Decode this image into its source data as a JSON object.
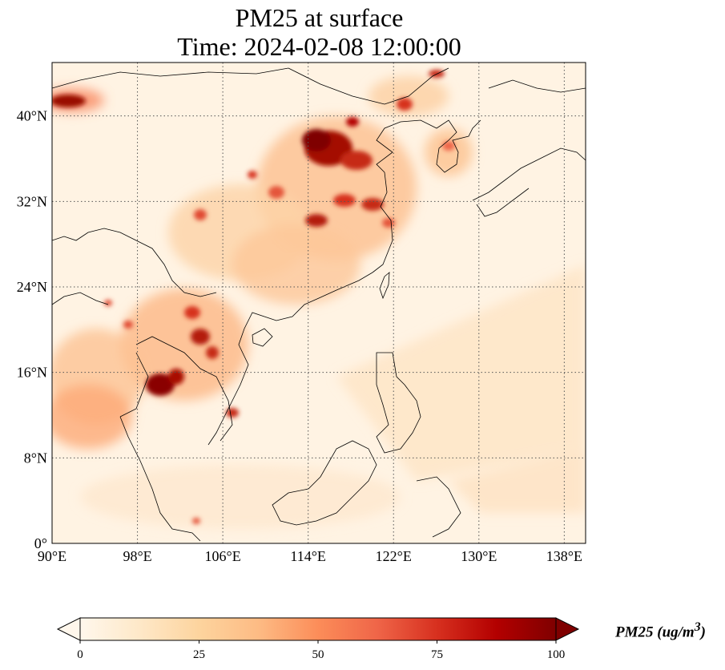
{
  "title": {
    "line1": "PM25 at surface",
    "line2": "Time: 2024-02-08 12:00:00"
  },
  "map": {
    "lon_range": [
      90,
      140
    ],
    "lat_range": [
      0,
      45
    ],
    "gridline_style": "dotted",
    "x_ticks": [
      {
        "value": 90,
        "label": "90°E"
      },
      {
        "value": 98,
        "label": "98°E"
      },
      {
        "value": 106,
        "label": "106°E"
      },
      {
        "value": 114,
        "label": "114°E"
      },
      {
        "value": 122,
        "label": "122°E"
      },
      {
        "value": 130,
        "label": "130°E"
      },
      {
        "value": 138,
        "label": "138°E"
      }
    ],
    "y_ticks": [
      {
        "value": 0,
        "label": "0°"
      },
      {
        "value": 8,
        "label": "8°N"
      },
      {
        "value": 16,
        "label": "16°N"
      },
      {
        "value": 24,
        "label": "24°N"
      },
      {
        "value": 32,
        "label": "32°N"
      },
      {
        "value": 40,
        "label": "40°N"
      }
    ]
  },
  "colorbar": {
    "colormap": "OrRd",
    "range": [
      0,
      100
    ],
    "extend": "both",
    "ticks": [
      "0",
      "25",
      "50",
      "75",
      "100"
    ],
    "title": "PM25 (ug/m",
    "title_superscript": "3",
    "title_close": ")",
    "colors": [
      "#fff7ec",
      "#fee8c8",
      "#fdd49e",
      "#fdbb84",
      "#fc8d59",
      "#ef6548",
      "#d7301f",
      "#b30000",
      "#7f0000"
    ]
  }
}
